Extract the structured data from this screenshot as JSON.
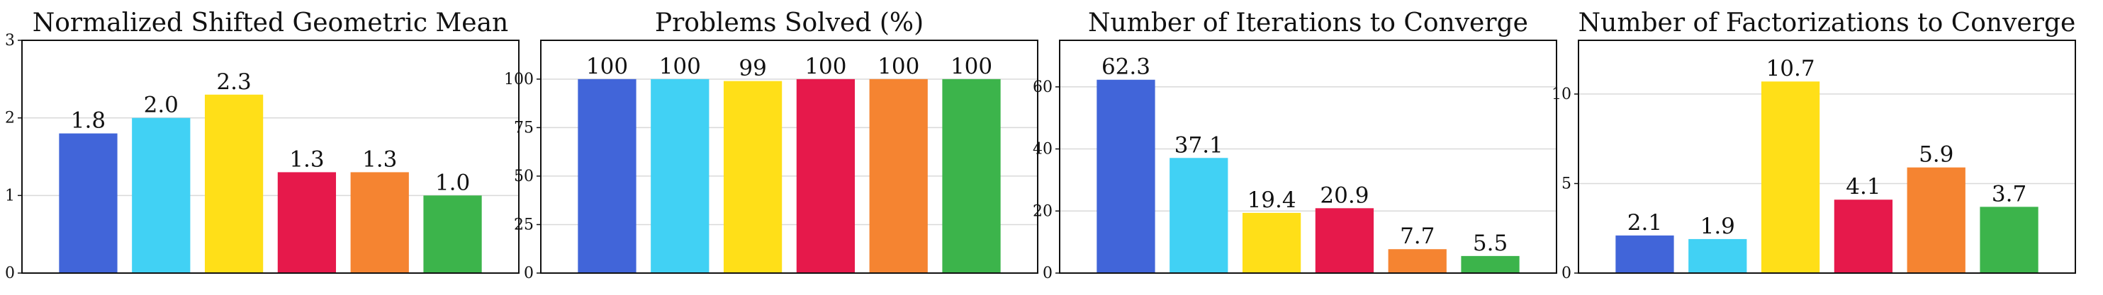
{
  "colors": [
    "#4165D9",
    "#41D1F4",
    "#FFDF18",
    "#E6194B",
    "#F58431",
    "#3CB44B"
  ],
  "chart_data": [
    {
      "type": "bar",
      "title": "Normalized Shifted Geometric Mean",
      "categories": [
        "",
        "",
        "",
        "",
        "",
        ""
      ],
      "values": [
        1.8,
        2.0,
        2.3,
        1.3,
        1.3,
        1.0
      ],
      "value_labels": [
        "1.8",
        "2.0",
        "2.3",
        "1.3",
        "1.3",
        "1.0"
      ],
      "ylim": [
        0,
        3
      ],
      "yticks": [
        0,
        1,
        2,
        3
      ],
      "ytick_labels": [
        "0",
        "1",
        "2",
        "3"
      ],
      "grid": true
    },
    {
      "type": "bar",
      "title": "Problems Solved (%)",
      "categories": [
        "",
        "",
        "",
        "",
        "",
        ""
      ],
      "values": [
        100,
        100,
        99,
        100,
        100,
        100
      ],
      "value_labels": [
        "100",
        "100",
        "99",
        "100",
        "100",
        "100"
      ],
      "ylim": [
        0,
        120
      ],
      "yticks": [
        0,
        25,
        50,
        75,
        100
      ],
      "ytick_labels": [
        "0",
        "25",
        "50",
        "75",
        "100"
      ],
      "grid": true
    },
    {
      "type": "bar",
      "title": "Number of Iterations to Converge",
      "categories": [
        "",
        "",
        "",
        "",
        "",
        ""
      ],
      "values": [
        62.3,
        37.1,
        19.4,
        20.9,
        7.7,
        5.5
      ],
      "value_labels": [
        "62.3",
        "37.1",
        "19.4",
        "20.9",
        "7.7",
        "5.5"
      ],
      "ylim": [
        0,
        75
      ],
      "yticks": [
        0,
        20,
        40,
        60
      ],
      "ytick_labels": [
        "0",
        "20",
        "40",
        "60"
      ],
      "grid": true
    },
    {
      "type": "bar",
      "title": "Number of Factorizations to Converge",
      "categories": [
        "",
        "",
        "",
        "",
        "",
        ""
      ],
      "values": [
        2.1,
        1.9,
        10.7,
        4.1,
        5.9,
        3.7
      ],
      "value_labels": [
        "2.1",
        "1.9",
        "10.7",
        "4.1",
        "5.9",
        "3.7"
      ],
      "ylim": [
        0,
        13
      ],
      "yticks": [
        0,
        5,
        10
      ],
      "ytick_labels": [
        "0",
        "5",
        "10"
      ],
      "grid": true
    }
  ]
}
